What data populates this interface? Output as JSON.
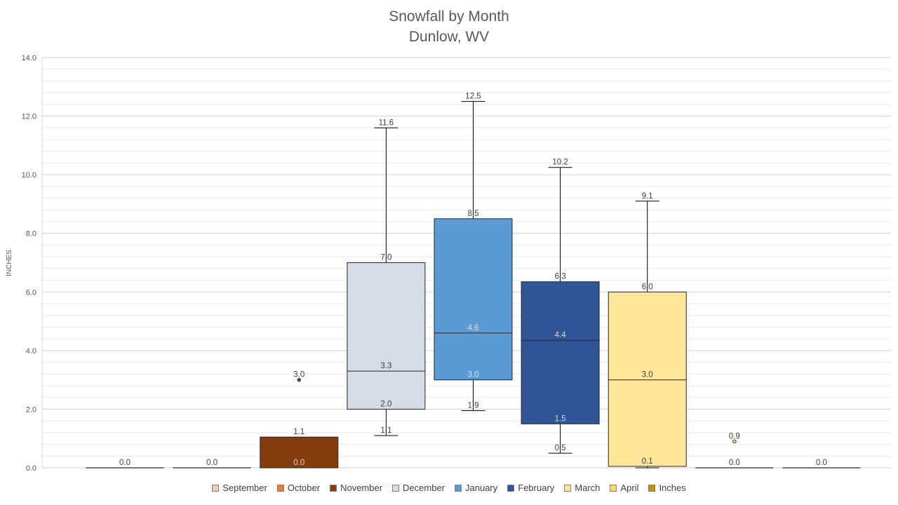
{
  "chart_data": {
    "type": "box",
    "title_line1": "Snowfall by Month",
    "title_line2": "Dunlow, WV",
    "ylabel": "INCHES",
    "ylim": [
      0,
      14
    ],
    "yticks": [
      "0.0",
      "2.0",
      "4.0",
      "6.0",
      "8.0",
      "10.0",
      "12.0",
      "14.0"
    ],
    "grid": true,
    "legend_position": "bottom",
    "legend": [
      {
        "name": "September",
        "color": "#F8CBAD"
      },
      {
        "name": "October",
        "color": "#ED7D31"
      },
      {
        "name": "November",
        "color": "#843C0C"
      },
      {
        "name": "December",
        "color": "#D6DCE5"
      },
      {
        "name": "January",
        "color": "#5B9BD5"
      },
      {
        "name": "February",
        "color": "#2F5597"
      },
      {
        "name": "March",
        "color": "#FFE699"
      },
      {
        "name": "April",
        "color": "#FFD966"
      },
      {
        "name": "Inches",
        "color": "#BF9000"
      }
    ],
    "boxes": [
      {
        "name": "September",
        "color": "#F8CBAD",
        "min": 0.0,
        "q1": 0.0,
        "median": 0.0,
        "q3": 0.0,
        "max": 0.0,
        "labels": [
          {
            "value": 0.0,
            "text": "0.0"
          }
        ]
      },
      {
        "name": "October",
        "color": "#ED7D31",
        "min": 0.0,
        "q1": 0.0,
        "median": 0.0,
        "q3": 0.0,
        "max": 0.0,
        "labels": [
          {
            "value": 0.0,
            "text": "0.0"
          }
        ]
      },
      {
        "name": "November",
        "color": "#843C0C",
        "min": 0.0,
        "q1": 0.0,
        "median": 0.0,
        "q3": 1.05,
        "max": 1.05,
        "outliers": [
          3.0
        ],
        "labels": [
          {
            "value": 3.0,
            "text": "3.0"
          },
          {
            "value": 1.05,
            "text": "1.1"
          },
          {
            "value": 0.0,
            "text": "0.0"
          }
        ]
      },
      {
        "name": "December",
        "color": "#D6DCE5",
        "min": 1.1,
        "q1": 2.0,
        "median": 3.3,
        "q3": 7.0,
        "max": 11.6,
        "labels": [
          {
            "value": 11.6,
            "text": "11.6"
          },
          {
            "value": 7.0,
            "text": "7.0"
          },
          {
            "value": 3.3,
            "text": "3.3"
          },
          {
            "value": 2.0,
            "text": "2.0"
          },
          {
            "value": 1.1,
            "text": "1.1"
          }
        ]
      },
      {
        "name": "January",
        "color": "#5B9BD5",
        "min": 1.95,
        "q1": 3.0,
        "median": 4.6,
        "q3": 8.5,
        "max": 12.5,
        "labels": [
          {
            "value": 12.5,
            "text": "12.5"
          },
          {
            "value": 8.5,
            "text": "8.5"
          },
          {
            "value": 4.6,
            "text": "4.6"
          },
          {
            "value": 3.0,
            "text": "3.0"
          },
          {
            "value": 1.95,
            "text": "1.9"
          }
        ]
      },
      {
        "name": "February",
        "color": "#2F5597",
        "min": 0.5,
        "q1": 1.5,
        "median": 4.35,
        "q3": 6.35,
        "max": 10.25,
        "labels": [
          {
            "value": 10.25,
            "text": "10.2"
          },
          {
            "value": 6.35,
            "text": "6.3"
          },
          {
            "value": 4.35,
            "text": "4.4"
          },
          {
            "value": 1.5,
            "text": "1.5"
          },
          {
            "value": 0.5,
            "text": "0.5"
          }
        ]
      },
      {
        "name": "March",
        "color": "#FFE699",
        "min": 0.0,
        "q1": 0.05,
        "median": 3.0,
        "q3": 6.0,
        "max": 9.1,
        "labels": [
          {
            "value": 9.1,
            "text": "9.1"
          },
          {
            "value": 6.0,
            "text": "6.0"
          },
          {
            "value": 3.0,
            "text": "3.0"
          },
          {
            "value": 0.05,
            "text": "0.1"
          }
        ]
      },
      {
        "name": "April",
        "color": "#FFD966",
        "min": 0.0,
        "q1": 0.0,
        "median": 0.0,
        "q3": 0.0,
        "max": 0.0,
        "outliers": [
          0.9
        ],
        "labels": [
          {
            "value": 0.9,
            "text": "0.9"
          },
          {
            "value": 0.0,
            "text": "0.0"
          }
        ]
      },
      {
        "name": "Inches",
        "color": "#BF9000",
        "min": 0.0,
        "q1": 0.0,
        "median": 0.0,
        "q3": 0.0,
        "max": 0.0,
        "labels": [
          {
            "value": 0.0,
            "text": "0.0"
          }
        ]
      }
    ]
  }
}
